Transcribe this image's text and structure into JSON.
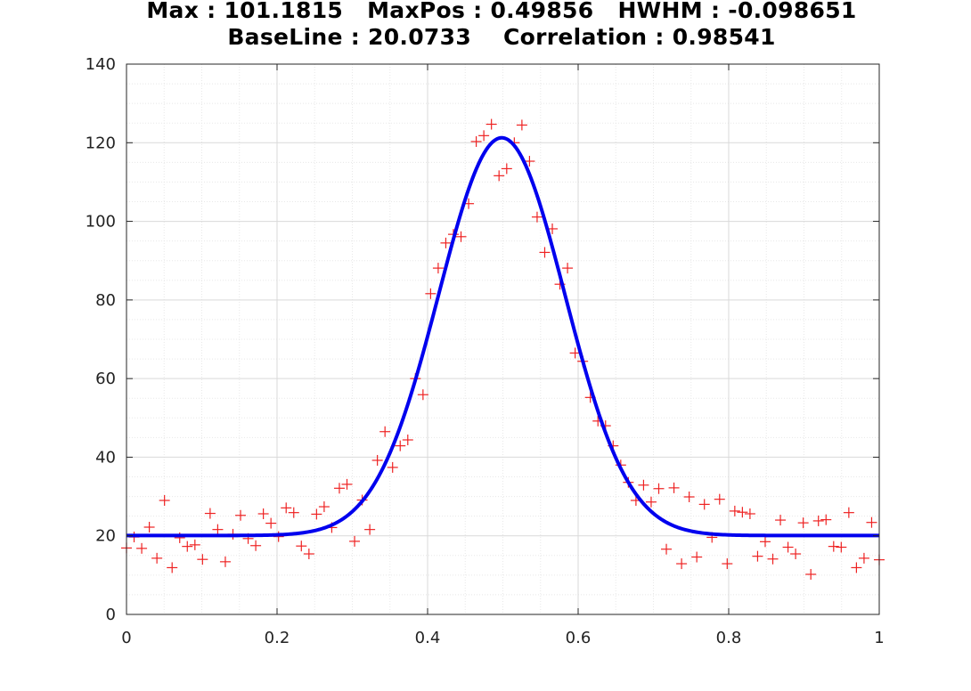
{
  "title_lines": [
    "Max : 101.1815   MaxPos : 0.49856   HWHM : -0.098651",
    "BaseLine : 20.0733    Correlation : 0.98541"
  ],
  "colors": {
    "fit_line": "#0000ee",
    "markers": "#ee2222",
    "grid_major": "#d9d9d9",
    "grid_minor": "#e8e8e8",
    "axes": "#262626"
  },
  "chart_data": {
    "type": "scatter",
    "title": "Max : 101.1815   MaxPos : 0.49856   HWHM : -0.098651 / BaseLine : 20.0733    Correlation : 0.98541",
    "xlabel": "",
    "ylabel": "",
    "xlim": [
      0,
      1
    ],
    "ylim": [
      0,
      140
    ],
    "grid": true,
    "minor_grid": true,
    "xticks": [
      0,
      0.2,
      0.4,
      0.6,
      0.8,
      1
    ],
    "xtick_labels": [
      "0",
      "0.2",
      "0.4",
      "0.6",
      "0.8",
      "1"
    ],
    "yticks": [
      0,
      20,
      40,
      60,
      80,
      100,
      120,
      140
    ],
    "ytick_labels": [
      "0",
      "20",
      "40",
      "60",
      "80",
      "100",
      "120",
      "140"
    ],
    "series": [
      {
        "kind": "markers",
        "marker": "+",
        "x": [
          0.0,
          0.0101,
          0.0202,
          0.0303,
          0.0404,
          0.0505,
          0.0606,
          0.0707,
          0.0808,
          0.0909,
          0.101,
          0.1111,
          0.1212,
          0.1313,
          0.1414,
          0.1515,
          0.1616,
          0.1717,
          0.1818,
          0.1919,
          0.202,
          0.2121,
          0.2222,
          0.2323,
          0.2424,
          0.2525,
          0.2626,
          0.2727,
          0.2828,
          0.2929,
          0.303,
          0.3131,
          0.3232,
          0.3333,
          0.3434,
          0.3535,
          0.3636,
          0.3737,
          0.3838,
          0.3939,
          0.404,
          0.4141,
          0.4242,
          0.4343,
          0.4444,
          0.4545,
          0.4646,
          0.4747,
          0.4848,
          0.4949,
          0.5051,
          0.5152,
          0.5253,
          0.5354,
          0.5455,
          0.5556,
          0.5657,
          0.5758,
          0.5859,
          0.596,
          0.6061,
          0.6162,
          0.6263,
          0.6364,
          0.6465,
          0.6566,
          0.6667,
          0.6768,
          0.6869,
          0.697,
          0.7071,
          0.7172,
          0.7273,
          0.7374,
          0.7475,
          0.7576,
          0.7677,
          0.7778,
          0.7879,
          0.798,
          0.8081,
          0.8182,
          0.8283,
          0.8384,
          0.8485,
          0.8586,
          0.8687,
          0.8788,
          0.8889,
          0.899,
          0.9091,
          0.9192,
          0.9293,
          0.9394,
          0.9495,
          0.9596,
          0.9697,
          0.9798,
          0.9899,
          1.0
        ],
        "y": [
          16.9,
          19.7,
          16.8,
          22.2,
          14.3,
          29.0,
          11.9,
          19.5,
          17.3,
          17.7,
          14.0,
          25.7,
          21.6,
          13.4,
          20.4,
          25.2,
          19.3,
          17.5,
          25.6,
          23.2,
          19.8,
          27.1,
          25.9,
          17.4,
          15.4,
          25.5,
          27.4,
          22.1,
          32.1,
          33.1,
          18.6,
          29.1,
          21.6,
          39.2,
          46.5,
          37.4,
          42.9,
          44.4,
          60.0,
          55.9,
          81.6,
          88.1,
          94.5,
          96.7,
          96.1,
          104.5,
          120.3,
          121.8,
          124.7,
          111.6,
          113.4,
          120.0,
          124.5,
          115.3,
          101.1,
          92.1,
          98.1,
          84.0,
          88.1,
          66.5,
          64.4,
          55.2,
          49.2,
          48.0,
          42.9,
          38.0,
          33.6,
          29.0,
          32.9,
          28.6,
          32.0,
          16.6,
          32.2,
          12.9,
          29.9,
          14.6,
          28.0,
          19.6,
          29.3,
          12.9,
          26.3,
          26.0,
          25.6,
          14.8,
          18.5,
          14.1,
          24.0,
          17.1,
          15.4,
          23.3,
          10.2,
          23.8,
          24.1,
          17.3,
          17.1,
          25.9,
          11.9,
          14.3,
          23.4,
          13.9
        ]
      },
      {
        "kind": "fit",
        "model": "gaussian",
        "baseline": 20.0733,
        "amplitude": 101.1815,
        "center": 0.49856,
        "hwhm": -0.098651
      }
    ]
  }
}
